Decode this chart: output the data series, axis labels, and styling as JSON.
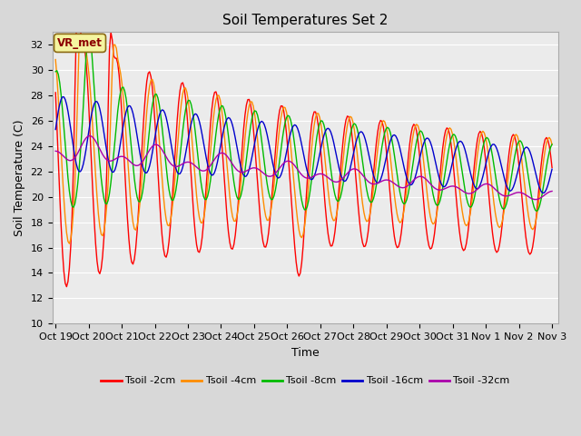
{
  "title": "Soil Temperatures Set 2",
  "xlabel": "Time",
  "ylabel": "Soil Temperature (C)",
  "ylim": [
    10,
    33
  ],
  "yticks": [
    10,
    12,
    14,
    16,
    18,
    20,
    22,
    24,
    26,
    28,
    30,
    32
  ],
  "xtick_labels": [
    "Oct 19",
    "Oct 20",
    "Oct 21",
    "Oct 22",
    "Oct 23",
    "Oct 24",
    "Oct 25",
    "Oct 26",
    "Oct 27",
    "Oct 28",
    "Oct 29",
    "Oct 30",
    "Oct 31",
    "Nov 1",
    "Nov 2",
    "Nov 3"
  ],
  "series_colors": [
    "#ff0000",
    "#ff8c00",
    "#00bb00",
    "#0000cc",
    "#aa00aa"
  ],
  "series_labels": [
    "Tsoil -2cm",
    "Tsoil -4cm",
    "Tsoil -8cm",
    "Tsoil -16cm",
    "Tsoil -32cm"
  ],
  "annotation_text": "VR_met",
  "fig_facecolor": "#d8d8d8",
  "plot_facecolor": "#ebebeb",
  "grid_color": "#ffffff",
  "title_fontsize": 11,
  "axis_fontsize": 9,
  "tick_fontsize": 8
}
